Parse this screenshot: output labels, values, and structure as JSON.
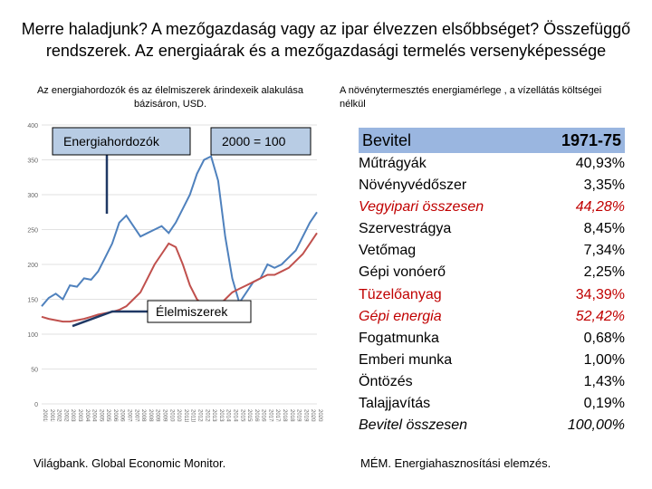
{
  "title": "Merre haladjunk? A mezőgazdaság vagy az ipar élvezzen elsőbbséget? Összefüggő rendszerek. Az energiaárak és a mezőgazdasági termelés versenyképessége",
  "left_subtitle": "Az energiahordozók és az élelmiszerek árindexeik alakulása bázisáron, USD.",
  "right_subtitle": "A növénytermesztés energiamérlege , a vízellátás költségei nélkül",
  "left_source": "Világbank. Global Economic Monitor.",
  "right_source": "MÉM. Energiahasznosítási elemzés.",
  "colors": {
    "energy": "#4f81bd",
    "food": "#c0504d",
    "table_header": "#9ab6e0",
    "highlight": "#c00000"
  },
  "chart_data": {
    "type": "line",
    "annotations": {
      "energy": "Energiahordozók",
      "base": "2000 = 100",
      "food": "Élelmiszerek"
    },
    "ylim": [
      0,
      400
    ],
    "yticks": [
      0,
      50,
      100,
      150,
      200,
      250,
      300,
      350,
      400
    ],
    "xticks": [
      "2001M01",
      "2001M07",
      "2002M01",
      "2002M07",
      "2003M01",
      "2003M07",
      "2004M01",
      "2004M07",
      "2005M01",
      "2005M07",
      "2006M01",
      "2006M07",
      "2007M01",
      "2007M07",
      "2008M01",
      "2008M07",
      "2009M01",
      "2009M07",
      "2010M01",
      "2010M07",
      "2011M01",
      "2011M07",
      "2012M01",
      "2012M07",
      "2013M01",
      "2013M07",
      "2014M01",
      "2014M07",
      "2015M01",
      "2015M07",
      "2016M01",
      "2016M07",
      "2017M01",
      "2017M07",
      "2018M01",
      "2018M07",
      "2019M01",
      "2019M07",
      "2020M01",
      "2020M07"
    ],
    "series": [
      {
        "name": "Energiahordozók",
        "values": [
          140,
          152,
          158,
          150,
          170,
          168,
          180,
          178,
          190,
          210,
          230,
          260,
          270,
          255,
          240,
          245,
          250,
          255,
          245,
          260,
          280,
          300,
          330,
          350,
          355,
          320,
          240,
          180,
          145,
          160,
          175,
          180,
          200,
          195,
          200,
          210,
          220,
          240,
          260,
          275
        ]
      },
      {
        "name": "Élelmiszerek",
        "values": [
          125,
          122,
          120,
          118,
          118,
          120,
          122,
          125,
          128,
          130,
          132,
          135,
          140,
          150,
          160,
          180,
          200,
          215,
          230,
          225,
          200,
          170,
          150,
          140,
          135,
          140,
          150,
          160,
          165,
          170,
          175,
          180,
          185,
          185,
          190,
          195,
          205,
          215,
          230,
          245
        ]
      }
    ]
  },
  "table": {
    "header": {
      "label": "Bevitel",
      "value": "1971-75"
    },
    "rows": [
      {
        "label": "Műtrágyák",
        "value": "40,93%",
        "style": "normal"
      },
      {
        "label": "Növényvédőszer",
        "value": "3,35%",
        "style": "normal"
      },
      {
        "label": "Vegyipari összesen",
        "value": "44,28%",
        "style": "red-italic"
      },
      {
        "label": "Szervestrágya",
        "value": "8,45%",
        "style": "normal"
      },
      {
        "label": "Vetőmag",
        "value": "7,34%",
        "style": "normal"
      },
      {
        "label": "Gépi vonóerő",
        "value": "2,25%",
        "style": "normal"
      },
      {
        "label": "Tüzelőanyag",
        "value": "34,39%",
        "style": "red"
      },
      {
        "label": "Gépi energia",
        "value": "52,42%",
        "style": "red-italic"
      },
      {
        "label": "Fogatmunka",
        "value": "0,68%",
        "style": "normal"
      },
      {
        "label": "Emberi munka",
        "value": "1,00%",
        "style": "normal"
      },
      {
        "label": "Öntözés",
        "value": "1,43%",
        "style": "normal"
      },
      {
        "label": "Talajjavítás",
        "value": "0,19%",
        "style": "normal"
      },
      {
        "label": "Bevitel összesen",
        "value": "100,00%",
        "style": "italic"
      }
    ]
  }
}
